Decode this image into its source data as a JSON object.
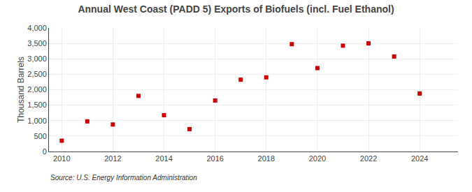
{
  "chart_data": {
    "type": "scatter",
    "title": "Annual West Coast (PADD 5) Exports of Biofuels (incl. Fuel Ethanol)",
    "ylabel": "Thousand Barrels",
    "annotations": [
      "Source: U.S. Energy Information Administration"
    ],
    "x": [
      2010,
      2011,
      2012,
      2013,
      2014,
      2015,
      2016,
      2017,
      2018,
      2019,
      2020,
      2021,
      2022,
      2023,
      2024
    ],
    "values": [
      350,
      975,
      875,
      1800,
      1175,
      725,
      1650,
      2325,
      2400,
      3475,
      2700,
      3425,
      3500,
      3075,
      1875
    ],
    "color": "#cc0000",
    "marker": "square",
    "xlim": [
      2009.5,
      2025.5
    ],
    "xticks": [
      2010,
      2012,
      2014,
      2016,
      2018,
      2020,
      2022,
      2024
    ],
    "ylim": [
      0,
      4000
    ],
    "yticks": [
      0,
      500,
      {
        "value": 1000,
        "label": "1,000"
      },
      {
        "value": 1500,
        "label": "1,500"
      },
      {
        "value": 2000,
        "label": "2,000"
      },
      {
        "value": 2500,
        "label": "2,500"
      },
      {
        "value": 3000,
        "label": "3,000"
      },
      {
        "value": 3500,
        "label": "3,500"
      },
      {
        "value": 4000,
        "label": "4,000"
      }
    ],
    "grid": true
  }
}
